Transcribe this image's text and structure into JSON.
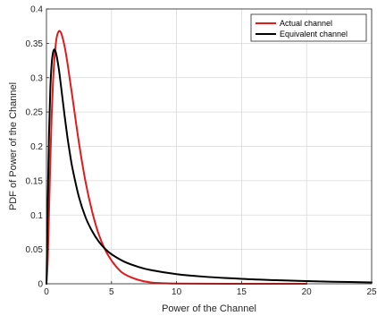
{
  "chart_data": {
    "type": "line",
    "title": "",
    "xlabel": "Power of the Channel",
    "ylabel": "PDF of Power of the Channel",
    "xlim": [
      0,
      25
    ],
    "ylim": [
      0,
      0.4
    ],
    "xticks": [
      0,
      5,
      10,
      15,
      20,
      25
    ],
    "yticks": [
      0,
      0.05,
      0.1,
      0.15,
      0.2,
      0.25,
      0.3,
      0.35,
      0.4
    ],
    "xtick_labels": [
      "0",
      "5",
      "10",
      "15",
      "20",
      "25"
    ],
    "ytick_labels": [
      "0",
      "0.05",
      "0.1",
      "0.15",
      "0.2",
      "0.25",
      "0.3",
      "0.35",
      "0.4"
    ],
    "grid": true,
    "legend_position": "top-right",
    "series": [
      {
        "name": "Actual channel",
        "color": "#e41a1c",
        "x": [
          0,
          0.1,
          0.2,
          0.3,
          0.4,
          0.5,
          0.6,
          0.7,
          0.8,
          0.9,
          1.0,
          1.1,
          1.2,
          1.4,
          1.6,
          1.8,
          2.0,
          2.5,
          3.0,
          3.5,
          4.0,
          4.5,
          5.0,
          5.5,
          6.0,
          7.0,
          8.0,
          9.0,
          10.0,
          12.0,
          15.0,
          20.0
        ],
        "y": [
          0,
          0.035,
          0.108,
          0.18,
          0.245,
          0.292,
          0.325,
          0.346,
          0.36,
          0.366,
          0.368,
          0.366,
          0.361,
          0.345,
          0.323,
          0.297,
          0.271,
          0.205,
          0.149,
          0.106,
          0.073,
          0.05,
          0.034,
          0.022,
          0.014,
          0.006,
          0.002,
          0.0008,
          0.0003,
          0.0001,
          0,
          0
        ]
      },
      {
        "name": "Equivalent channel",
        "color": "#000000",
        "x": [
          0,
          0.1,
          0.2,
          0.3,
          0.4,
          0.5,
          0.6,
          0.7,
          0.8,
          0.9,
          1.0,
          1.2,
          1.4,
          1.6,
          1.8,
          2.0,
          2.5,
          3.0,
          3.5,
          4.0,
          4.5,
          5.0,
          6.0,
          7.0,
          8.0,
          10.0,
          12.0,
          15.0,
          18.0,
          20.0,
          22.0,
          25.0
        ],
        "y": [
          0,
          0.12,
          0.22,
          0.285,
          0.32,
          0.336,
          0.341,
          0.338,
          0.33,
          0.319,
          0.306,
          0.275,
          0.244,
          0.215,
          0.19,
          0.168,
          0.126,
          0.097,
          0.077,
          0.062,
          0.051,
          0.043,
          0.032,
          0.025,
          0.02,
          0.014,
          0.0105,
          0.0072,
          0.005,
          0.0039,
          0.003,
          0.002
        ]
      }
    ]
  }
}
